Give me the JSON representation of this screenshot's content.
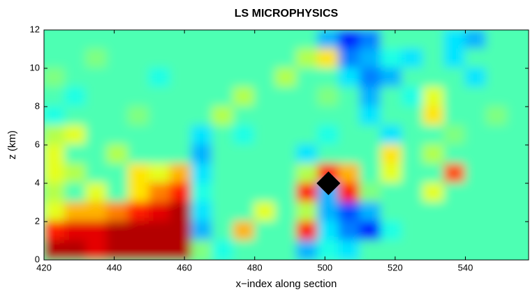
{
  "chart_data": {
    "type": "contour",
    "title": "LS MICROPHYSICS",
    "xlabel": "x−index along section",
    "ylabel": "z (km)",
    "colormap": "jet",
    "xlim": [
      420,
      558
    ],
    "ylim": [
      0,
      12
    ],
    "xticks": [
      420,
      440,
      460,
      480,
      500,
      520,
      540
    ],
    "yticks": [
      0,
      2,
      4,
      6,
      8,
      10,
      12
    ],
    "x": [
      423,
      429,
      435,
      441,
      447,
      453,
      459,
      465,
      471,
      477,
      483,
      489,
      495,
      501,
      507,
      513,
      519,
      525,
      531,
      537,
      543,
      549,
      555
    ],
    "y": [
      11.5,
      10.5,
      9.5,
      8.5,
      7.5,
      6.5,
      5.5,
      4.5,
      3.5,
      2.5,
      1.5,
      0.5
    ],
    "z": [
      [
        0.45,
        0.45,
        0.45,
        0.45,
        0.45,
        0.45,
        0.45,
        0.45,
        0.45,
        0.45,
        0.45,
        0.45,
        0.45,
        0.3,
        0.15,
        0.25,
        0.45,
        0.45,
        0.45,
        0.35,
        0.3,
        0.45,
        0.45
      ],
      [
        0.45,
        0.45,
        0.5,
        0.45,
        0.45,
        0.45,
        0.45,
        0.45,
        0.45,
        0.45,
        0.45,
        0.45,
        0.55,
        0.65,
        0.25,
        0.3,
        0.4,
        0.35,
        0.45,
        0.35,
        0.45,
        0.45,
        0.45
      ],
      [
        0.5,
        0.45,
        0.45,
        0.45,
        0.45,
        0.4,
        0.45,
        0.45,
        0.45,
        0.45,
        0.45,
        0.55,
        0.45,
        0.45,
        0.35,
        0.25,
        0.3,
        0.45,
        0.45,
        0.45,
        0.35,
        0.45,
        0.45
      ],
      [
        0.45,
        0.4,
        0.45,
        0.45,
        0.45,
        0.45,
        0.45,
        0.45,
        0.45,
        0.55,
        0.45,
        0.45,
        0.45,
        0.5,
        0.45,
        0.3,
        0.45,
        0.4,
        0.6,
        0.45,
        0.45,
        0.45,
        0.45
      ],
      [
        0.4,
        0.45,
        0.45,
        0.45,
        0.5,
        0.45,
        0.45,
        0.45,
        0.55,
        0.45,
        0.45,
        0.45,
        0.45,
        0.45,
        0.45,
        0.35,
        0.45,
        0.45,
        0.65,
        0.45,
        0.45,
        0.5,
        0.45
      ],
      [
        0.55,
        0.6,
        0.45,
        0.45,
        0.45,
        0.45,
        0.45,
        0.35,
        0.45,
        0.4,
        0.45,
        0.45,
        0.45,
        0.4,
        0.45,
        0.45,
        0.35,
        0.45,
        0.45,
        0.5,
        0.45,
        0.45,
        0.45
      ],
      [
        0.6,
        0.45,
        0.45,
        0.55,
        0.45,
        0.45,
        0.45,
        0.3,
        0.45,
        0.45,
        0.45,
        0.45,
        0.35,
        0.45,
        0.45,
        0.45,
        0.65,
        0.45,
        0.55,
        0.45,
        0.45,
        0.45,
        0.45
      ],
      [
        0.6,
        0.55,
        0.45,
        0.45,
        0.65,
        0.6,
        0.7,
        0.35,
        0.45,
        0.45,
        0.45,
        0.45,
        0.55,
        0.85,
        0.7,
        0.45,
        0.6,
        0.45,
        0.45,
        0.8,
        0.45,
        0.45,
        0.45
      ],
      [
        0.55,
        0.45,
        0.6,
        0.45,
        0.65,
        0.75,
        0.85,
        0.4,
        0.45,
        0.45,
        0.45,
        0.45,
        0.85,
        0.3,
        0.85,
        0.5,
        0.45,
        0.45,
        0.6,
        0.45,
        0.45,
        0.45,
        0.45
      ],
      [
        0.6,
        0.7,
        0.7,
        0.75,
        0.85,
        0.9,
        0.95,
        0.35,
        0.45,
        0.45,
        0.6,
        0.45,
        0.55,
        0.3,
        0.2,
        0.3,
        0.45,
        0.45,
        0.45,
        0.45,
        0.45,
        0.45,
        0.45
      ],
      [
        0.85,
        0.9,
        0.9,
        0.95,
        0.95,
        0.95,
        0.95,
        0.3,
        0.45,
        0.7,
        0.45,
        0.45,
        0.85,
        0.35,
        0.25,
        0.15,
        0.4,
        0.45,
        0.45,
        0.45,
        0.45,
        0.45,
        0.45
      ],
      [
        0.95,
        0.95,
        0.9,
        0.95,
        0.95,
        0.95,
        0.95,
        0.5,
        0.4,
        0.45,
        0.45,
        0.45,
        0.3,
        0.4,
        0.35,
        0.45,
        0.45,
        0.45,
        0.45,
        0.45,
        0.45,
        0.45,
        0.45
      ]
    ],
    "marker": {
      "x": 501,
      "y": 4
    }
  }
}
